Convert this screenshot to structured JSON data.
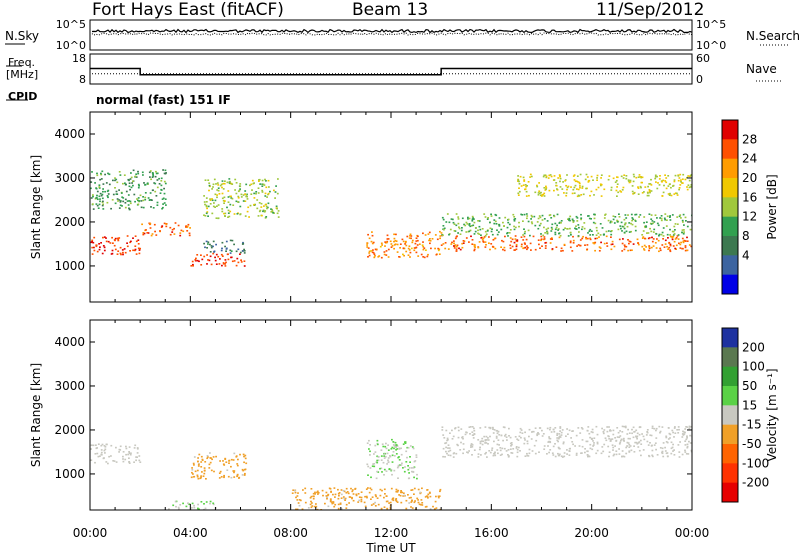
{
  "header": {
    "station": "Fort Hays East (fitACF)",
    "beam": "Beam 13",
    "date": "11/Sep/2012"
  },
  "top_panels": {
    "nsky_label": "N.Sky",
    "nsearch_label": "N.Search",
    "nsky_ticks": [
      "10^5",
      "10^0"
    ],
    "nsearch_ticks": [
      "10^5",
      "10^0"
    ],
    "freq_label": "Freq.",
    "freq_unit": "[MHz]",
    "freq_ticks": [
      "18",
      "8"
    ],
    "nave_label": "Nave",
    "nave_ticks": [
      "60",
      "0"
    ],
    "cpid_label": "CPID",
    "cpid_text": "normal (fast) 151 IF"
  },
  "axes": {
    "xlabel": "Time UT",
    "xticks": [
      "00:00",
      "04:00",
      "08:00",
      "12:00",
      "16:00",
      "20:00",
      "00:00"
    ],
    "ylabel": "Slant Range [km]",
    "yticks": [
      "1000",
      "2000",
      "3000",
      "4000"
    ]
  },
  "power_scale": {
    "label": "Power [dB]",
    "ticks": [
      "28",
      "24",
      "20",
      "16",
      "12",
      "8",
      "4"
    ],
    "colors": [
      "#e00000",
      "#ff5000",
      "#ff9c00",
      "#f0c800",
      "#a0c83c",
      "#32a050",
      "#3c7850",
      "#3c64a0",
      "#0000e6"
    ]
  },
  "velocity_scale": {
    "label": "Velocity [m s⁻¹]",
    "ticks": [
      "200",
      "100",
      "50",
      "15",
      "-15",
      "-50",
      "-100",
      "-200"
    ],
    "colors": [
      "#1e32a0",
      "#5a7850",
      "#32a032",
      "#5ad246",
      "#c8c8c0",
      "#f0a028",
      "#ff6400",
      "#ff3200",
      "#e60000"
    ]
  },
  "chart_data": {
    "type": "heatmap",
    "x_range": [
      "00:00",
      "24:00"
    ],
    "y_range_km": [
      180,
      4500
    ],
    "frequency_MHz": [
      {
        "start": "00:00",
        "end": "02:00",
        "value": 13
      },
      {
        "start": "02:00",
        "end": "14:00",
        "value": 10
      },
      {
        "start": "14:00",
        "end": "24:00",
        "value": 13
      }
    ],
    "nave_level": 15,
    "power": {
      "units": "dB",
      "range": [
        0,
        32
      ],
      "features": [
        {
          "time_start_h": 0.0,
          "time_end_h": 2.0,
          "range_start_km": 1250,
          "range_end_km": 1700,
          "value_dB": 28
        },
        {
          "time_start_h": 2.0,
          "time_end_h": 4.0,
          "range_start_km": 1700,
          "range_end_km": 2000,
          "value_dB": 26
        },
        {
          "time_start_h": 4.0,
          "time_end_h": 6.2,
          "range_start_km": 1000,
          "range_end_km": 1300,
          "value_dB": 28
        },
        {
          "time_start_h": 4.5,
          "time_end_h": 6.2,
          "range_start_km": 1300,
          "range_end_km": 1600,
          "value_dB": 8
        },
        {
          "time_start_h": 4.5,
          "time_end_h": 7.5,
          "range_start_km": 2100,
          "range_end_km": 3000,
          "value_dB": 16
        },
        {
          "time_start_h": 0.0,
          "time_end_h": 3.0,
          "range_start_km": 2300,
          "range_end_km": 3200,
          "value_dB": 12
        },
        {
          "time_start_h": 11.0,
          "time_end_h": 14.0,
          "range_start_km": 1200,
          "range_end_km": 1800,
          "value_dB": 24
        },
        {
          "time_start_h": 14.0,
          "time_end_h": 24.0,
          "range_start_km": 1350,
          "range_end_km": 1700,
          "value_dB": 26
        },
        {
          "time_start_h": 14.0,
          "time_end_h": 24.0,
          "range_start_km": 1700,
          "range_end_km": 2200,
          "value_dB": 14
        },
        {
          "time_start_h": 17.0,
          "time_end_h": 24.0,
          "range_start_km": 2600,
          "range_end_km": 3100,
          "value_dB": 18
        }
      ]
    },
    "velocity": {
      "units": "m s^-1",
      "range": [
        -250,
        250
      ],
      "features": [
        {
          "time_start_h": 0.0,
          "time_end_h": 2.0,
          "range_start_km": 1250,
          "range_end_km": 1700,
          "value_ms": 0
        },
        {
          "time_start_h": 4.0,
          "time_end_h": 6.2,
          "range_start_km": 900,
          "range_end_km": 1500,
          "value_ms": -40
        },
        {
          "time_start_h": 3.0,
          "time_end_h": 5.0,
          "range_start_km": 200,
          "range_end_km": 400,
          "value_ms": 25
        },
        {
          "time_start_h": 8.0,
          "time_end_h": 14.0,
          "range_start_km": 200,
          "range_end_km": 700,
          "value_ms": -40
        },
        {
          "time_start_h": 11.0,
          "time_end_h": 13.0,
          "range_start_km": 900,
          "range_end_km": 1800,
          "value_ms": 25
        },
        {
          "time_start_h": 14.0,
          "time_end_h": 24.0,
          "range_start_km": 1400,
          "range_end_km": 2100,
          "value_ms": 0
        }
      ]
    }
  }
}
